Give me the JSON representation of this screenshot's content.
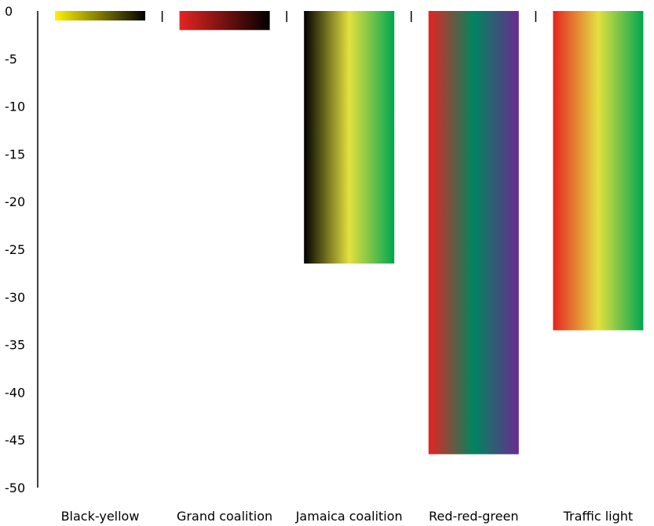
{
  "chart_data": {
    "type": "bar",
    "categories": [
      "Black-yellow",
      "Grand coalition",
      "Jamaica coalition",
      "Red-red-green",
      "Traffic light"
    ],
    "values": [
      -1.0,
      -2.0,
      -26.5,
      -46.5,
      -33.5
    ],
    "ylim": [
      -50,
      0
    ],
    "yticks": [
      0,
      -5,
      -10,
      -15,
      -20,
      -25,
      -30,
      -35,
      -40,
      -45,
      -50
    ],
    "grid": false,
    "legend": "none",
    "bar_colors": [
      [
        "#fff200",
        "#000000"
      ],
      [
        "#e52421",
        "#000000"
      ],
      [
        "#000000",
        "#e4e040",
        "#00a651"
      ],
      [
        "#e52421",
        "#00855e",
        "#6a2a90"
      ],
      [
        "#e52421",
        "#e4e040",
        "#00a651"
      ]
    ]
  }
}
